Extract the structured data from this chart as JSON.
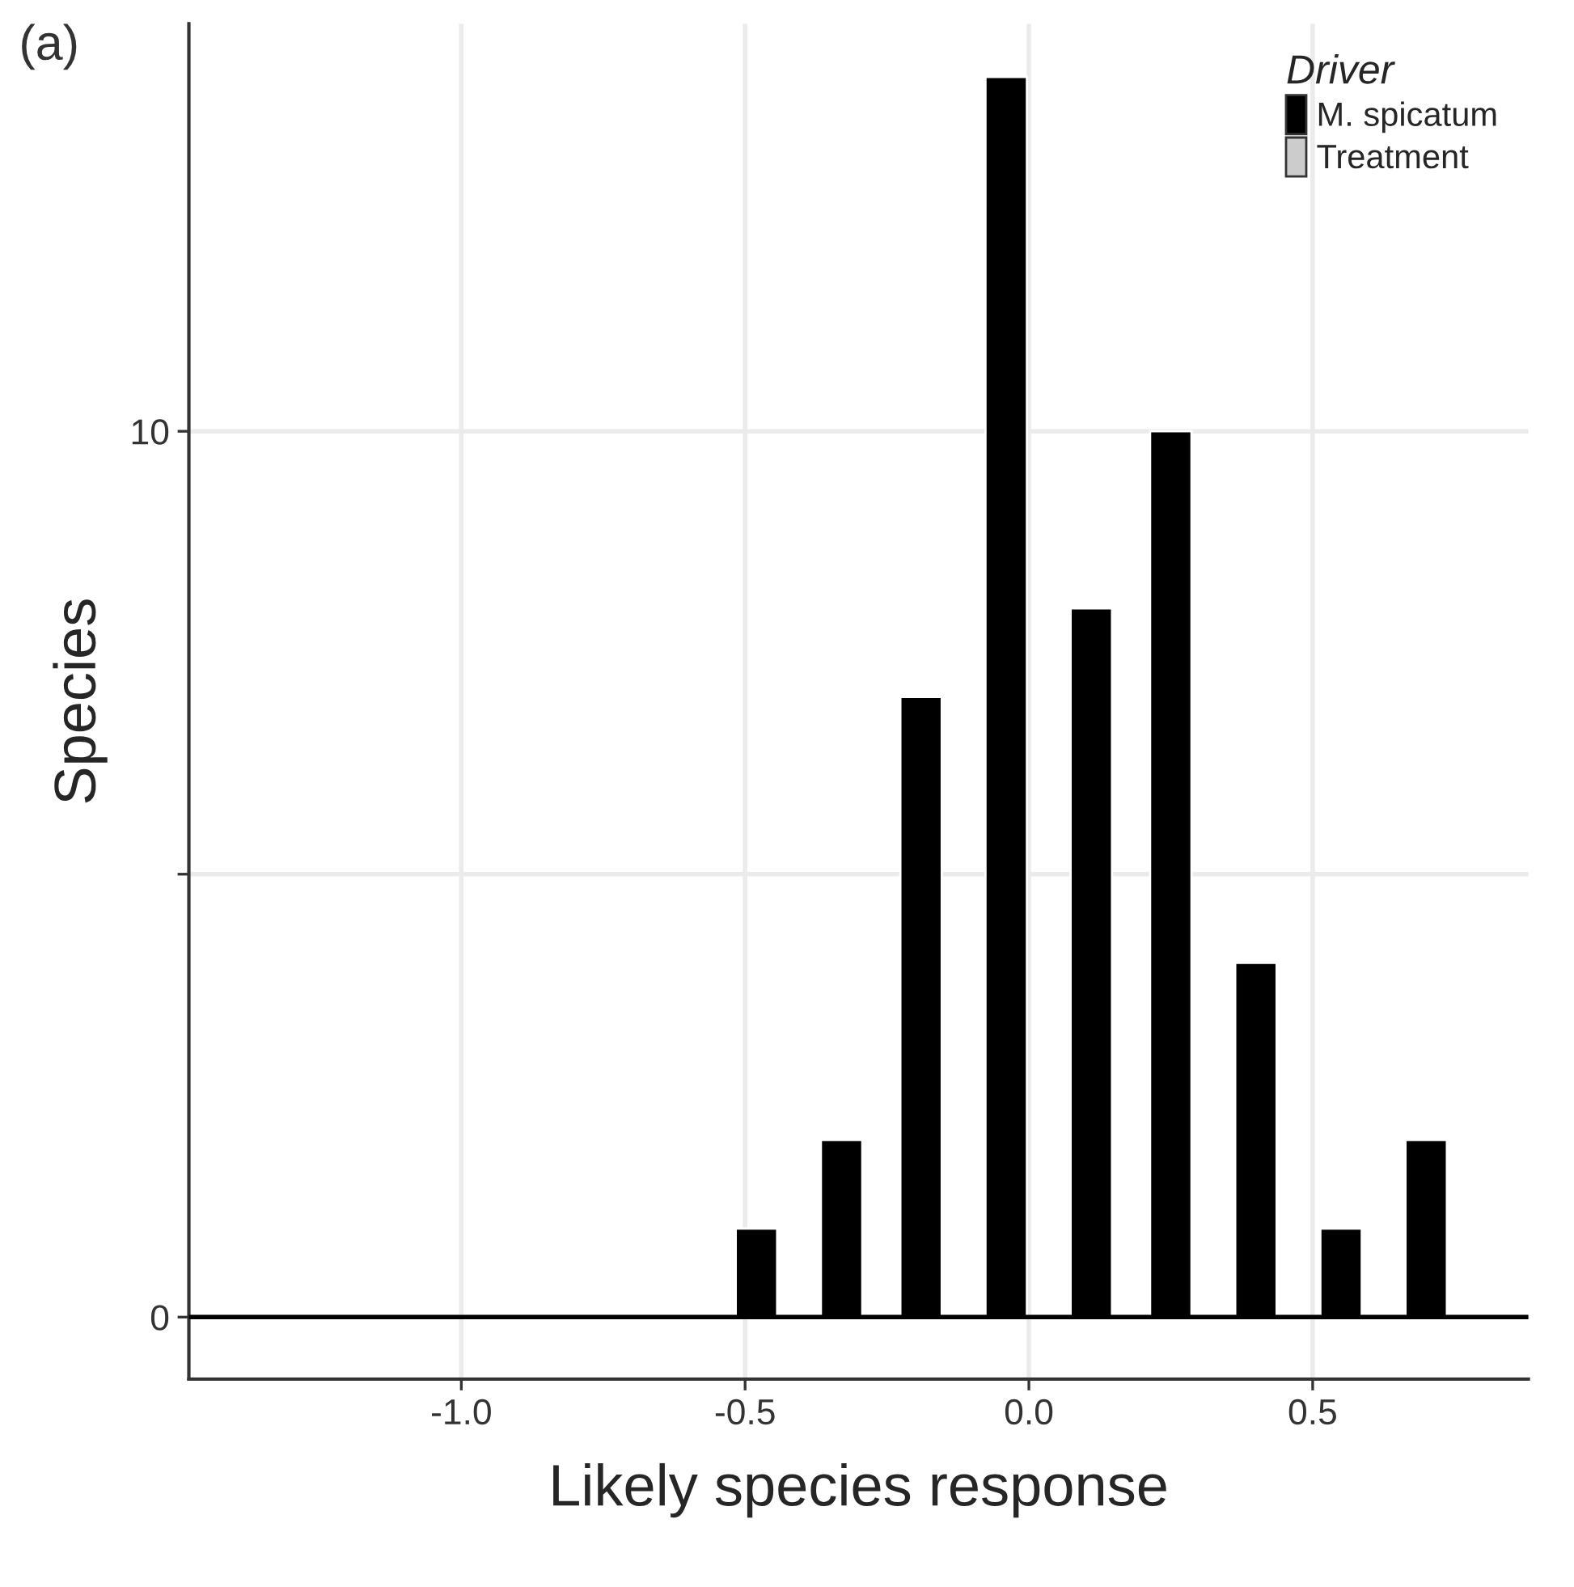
{
  "chart_data": {
    "type": "bar",
    "title": "(a)",
    "xlabel": "Likely species response",
    "ylabel": "Species",
    "legend_title": "Driver",
    "x": [
      -0.48,
      -0.33,
      -0.19,
      -0.04,
      0.11,
      0.25,
      0.4,
      0.55,
      0.7
    ],
    "series": [
      {
        "name": "M. spicatum",
        "color": "#000000",
        "values": [
          1,
          2,
          7,
          14,
          8,
          10,
          4,
          1,
          2
        ]
      },
      {
        "name": "Treatment",
        "color": "#cccccc",
        "values": [
          null,
          null,
          null,
          null,
          null,
          null,
          null,
          null,
          null
        ]
      }
    ],
    "xlim": [
      -1.48,
      0.88
    ],
    "xticks": [
      {
        "value": -1.0,
        "label": "-1.0"
      },
      {
        "value": -0.5,
        "label": "-0.5"
      },
      {
        "value": 0.0,
        "label": "0.0"
      },
      {
        "value": 0.5,
        "label": "0.5"
      }
    ],
    "ylim": [
      -0.7,
      14.6
    ],
    "yticks": [
      0,
      {
        "value": 5,
        "label": null
      },
      10
    ],
    "ref_lines": [
      {
        "axis": "y",
        "value": 0,
        "color": "#000000"
      }
    ],
    "grid": true,
    "legend": "top right"
  }
}
